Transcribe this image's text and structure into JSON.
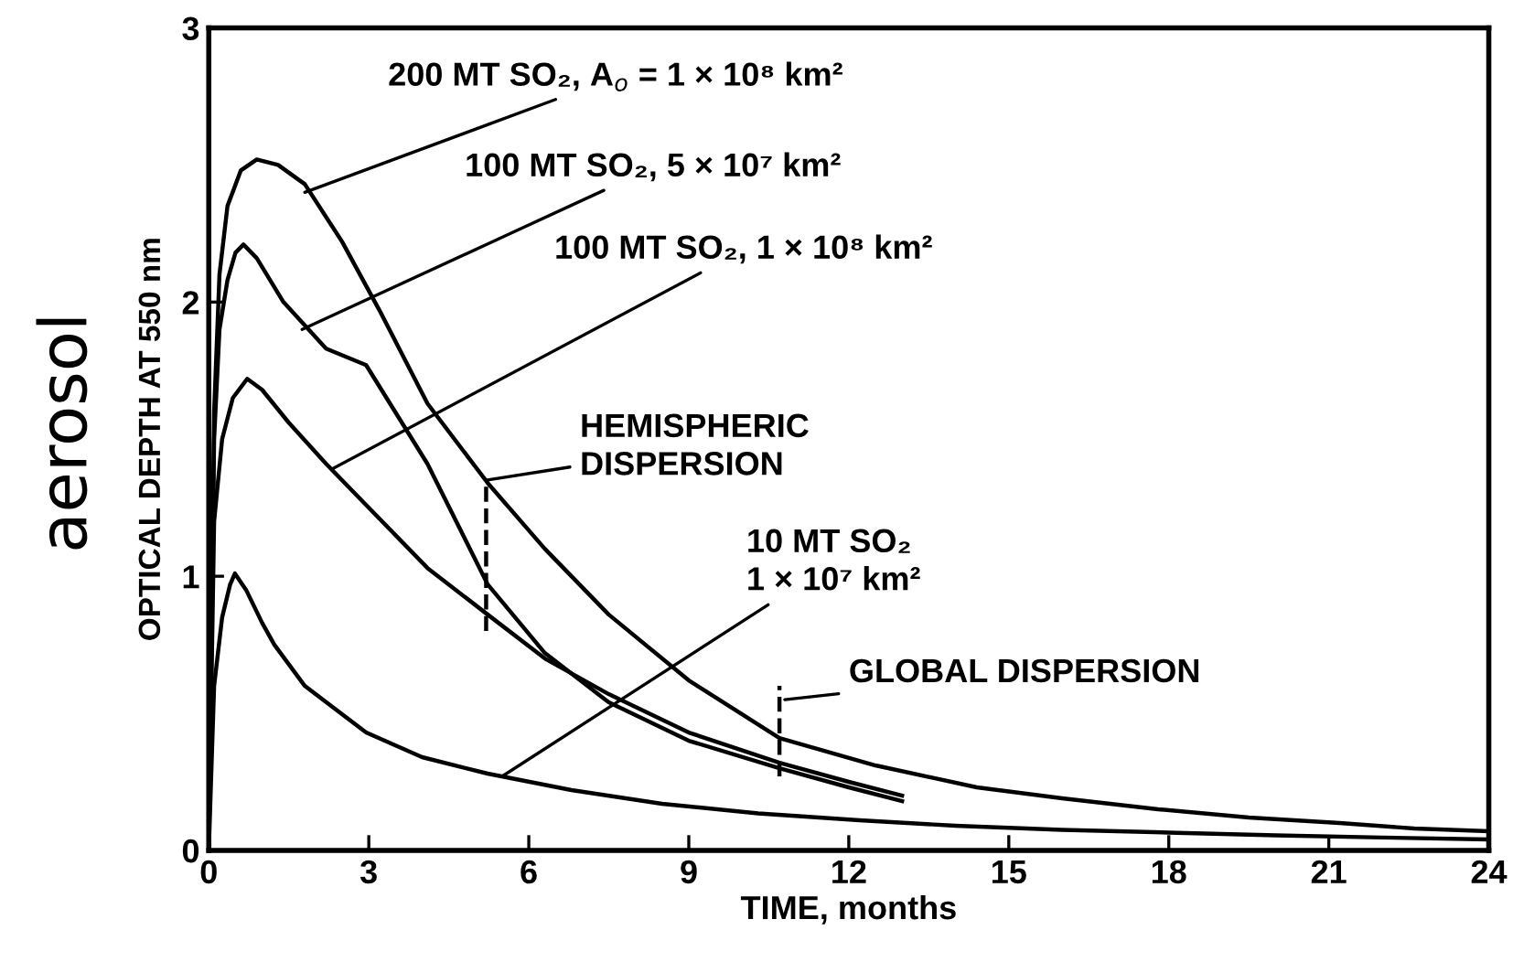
{
  "chart_data": {
    "type": "line",
    "xlabel": "TIME, months",
    "ylabel": "OPTICAL DEPTH AT 550 nm",
    "xlim": [
      0,
      24
    ],
    "ylim": [
      0,
      3
    ],
    "xticks": [
      0,
      3,
      6,
      9,
      12,
      15,
      18,
      21,
      24
    ],
    "yticks": [
      0,
      1,
      2,
      3
    ],
    "grid": false,
    "legend": false,
    "marker": "none",
    "line_style": "solid",
    "series": [
      {
        "color": "#000000",
        "x": [
          0,
          0.1,
          0.2,
          0.35,
          0.6,
          0.9,
          1.3,
          1.8,
          2.5,
          3.2,
          4.1,
          5.23,
          6.3,
          7.5,
          9,
          10.7,
          12.5,
          14.4,
          16,
          17.8,
          19.5,
          21.2,
          22.6,
          24
        ],
        "values": [
          0,
          1.6,
          2.1,
          2.35,
          2.48,
          2.52,
          2.5,
          2.43,
          2.22,
          1.97,
          1.63,
          1.34,
          1.1,
          0.86,
          0.62,
          0.41,
          0.31,
          0.23,
          0.19,
          0.15,
          0.12,
          0.1,
          0.08,
          0.07
        ]
      },
      {
        "color": "#000000",
        "x": [
          0,
          0.1,
          0.2,
          0.35,
          0.5,
          0.65,
          0.9,
          1.4,
          2.2,
          2.95,
          4.1,
          5.23,
          6.3,
          7.5,
          9,
          10.7,
          12,
          13
        ],
        "values": [
          0,
          1.5,
          1.9,
          2.08,
          2.18,
          2.21,
          2.16,
          2.0,
          1.83,
          1.77,
          1.41,
          0.97,
          0.72,
          0.54,
          0.4,
          0.3,
          0.23,
          0.18
        ]
      },
      {
        "color": "#000000",
        "x": [
          0,
          0.1,
          0.25,
          0.45,
          0.72,
          1.0,
          1.5,
          2.2,
          2.95,
          4.1,
          5.23,
          6.3,
          7.5,
          9,
          10.7,
          12,
          13
        ],
        "values": [
          0,
          1.2,
          1.5,
          1.65,
          1.72,
          1.68,
          1.56,
          1.41,
          1.26,
          1.03,
          0.86,
          0.7,
          0.57,
          0.43,
          0.32,
          0.25,
          0.2
        ]
      },
      {
        "color": "#000000",
        "x": [
          0,
          0.1,
          0.25,
          0.4,
          0.49,
          0.7,
          1.0,
          1.23,
          1.8,
          2.95,
          4.0,
          5.23,
          6.8,
          8.5,
          10.3,
          12.2,
          14,
          16,
          18,
          20,
          22,
          24
        ],
        "values": [
          0,
          0.6,
          0.85,
          0.97,
          1.01,
          0.95,
          0.83,
          0.75,
          0.6,
          0.43,
          0.34,
          0.28,
          0.22,
          0.17,
          0.135,
          0.11,
          0.09,
          0.075,
          0.065,
          0.055,
          0.047,
          0.04
        ]
      },
      {
        "color": "#000000",
        "line_style": "dashed",
        "x": [
          5.2,
          5.2
        ],
        "values": [
          0.8,
          1.35
        ]
      },
      {
        "color": "#000000",
        "line_style": "dashed",
        "x": [
          10.7,
          10.7
        ],
        "values": [
          0.27,
          0.6
        ]
      }
    ],
    "annotations": [
      "aerosol",
      {
        "text": "200 MT SO₂, A$_{o}$ = 1 × 10⁸ km²",
        "x": 1.8,
        "y": 2.4
      },
      {
        "text": "100 MT SO₂, 5 × 10⁷ km²",
        "x": 1.75,
        "y": 1.9
      },
      {
        "text": "100 MT SO₂, 1 × 10⁸ km²",
        "x": 2.3,
        "y": 1.39
      },
      {
        "text": "HEMISPHERIC\nDISPERSION",
        "x": 5.2,
        "y": 1.35
      },
      {
        "text": "10 MT SO₂\n1 × 10⁷ km²",
        "x": 5.5,
        "y": 0.27
      },
      {
        "text": "GLOBAL DISPERSION",
        "x": 10.8,
        "y": 0.55
      }
    ]
  }
}
